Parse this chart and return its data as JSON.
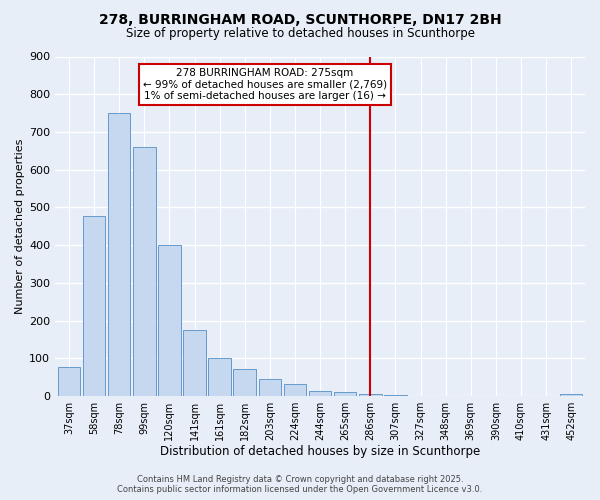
{
  "title": "278, BURRINGHAM ROAD, SCUNTHORPE, DN17 2BH",
  "subtitle": "Size of property relative to detached houses in Scunthorpe",
  "xlabel": "Distribution of detached houses by size in Scunthorpe",
  "ylabel": "Number of detached properties",
  "bar_color": "#c5d8f0",
  "bar_edge_color": "#6699cc",
  "bin_labels": [
    "37sqm",
    "58sqm",
    "78sqm",
    "99sqm",
    "120sqm",
    "141sqm",
    "161sqm",
    "182sqm",
    "203sqm",
    "224sqm",
    "244sqm",
    "265sqm",
    "286sqm",
    "307sqm",
    "327sqm",
    "348sqm",
    "369sqm",
    "390sqm",
    "410sqm",
    "431sqm",
    "452sqm"
  ],
  "bar_heights": [
    78,
    478,
    750,
    660,
    400,
    175,
    100,
    72,
    45,
    33,
    14,
    10,
    5,
    2,
    1,
    1,
    0,
    0,
    0,
    0,
    5
  ],
  "vline_x": 12.0,
  "vline_color": "#cc0000",
  "annotation_title": "278 BURRINGHAM ROAD: 275sqm",
  "annotation_line1": "← 99% of detached houses are smaller (2,769)",
  "annotation_line2": "1% of semi-detached houses are larger (16) →",
  "ylim": [
    0,
    900
  ],
  "yticks": [
    0,
    100,
    200,
    300,
    400,
    500,
    600,
    700,
    800,
    900
  ],
  "footer_line1": "Contains HM Land Registry data © Crown copyright and database right 2025.",
  "footer_line2": "Contains public sector information licensed under the Open Government Licence v3.0.",
  "background_color": "#e8eef8"
}
